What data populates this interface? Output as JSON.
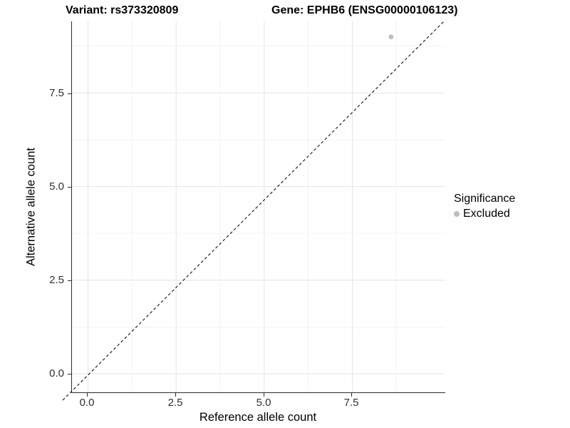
{
  "header": {
    "variant_title": "Variant: rs373320809",
    "gene_title": "Gene: EPHB6 (ENSG00000106123)"
  },
  "x_axis": {
    "title": "Reference allele count",
    "tick_labels": [
      "0.0",
      "2.5",
      "5.0",
      "7.5"
    ]
  },
  "y_axis": {
    "title": "Alternative allele count",
    "tick_labels": [
      "7.5",
      "5.0",
      "2.5",
      "0.0"
    ]
  },
  "legend": {
    "title": "Significance",
    "items": [
      {
        "label": "Excluded",
        "color": "#bebebe"
      }
    ]
  },
  "chart_data": {
    "type": "scatter",
    "title": "Variant: rs373320809  |  Gene: EPHB6 (ENSG00000106123)",
    "xlabel": "Reference allele count",
    "ylabel": "Alternative allele count",
    "x_ticks": [
      0,
      2.5,
      5,
      7.5
    ],
    "y_ticks": [
      0,
      2.5,
      5,
      7.5
    ],
    "xlim": [
      -0.45,
      10.15
    ],
    "ylim": [
      -0.55,
      9.4
    ],
    "grid": "major and minor gridlines, light gray on white",
    "legend_position": "right",
    "reference_line": {
      "style": "dashed",
      "color": "#000000",
      "meaning": "identity line y = x"
    },
    "point_color": "#bebebe",
    "point_series_name": "Excluded",
    "points": [
      {
        "x": 8.6,
        "y": 9.0,
        "significance": "Excluded"
      }
    ]
  }
}
